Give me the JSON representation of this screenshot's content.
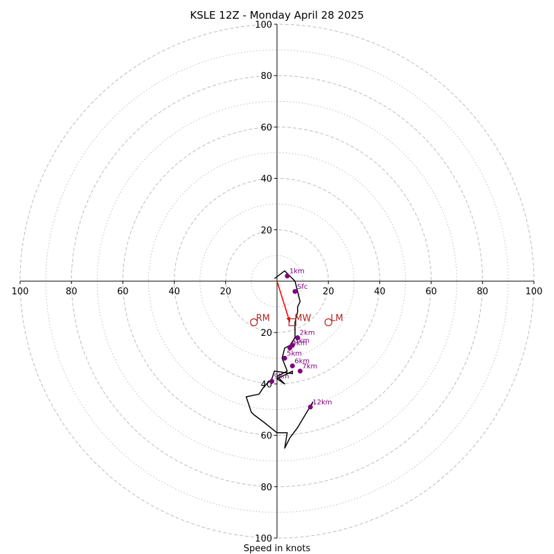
{
  "chart_data": {
    "type": "hodograph",
    "title": "KSLE 12Z - Monday April 28 2025",
    "xlabel": "Speed in knots",
    "ylabel": "",
    "xlim": [
      -100,
      100
    ],
    "ylim": [
      -100,
      100
    ],
    "units": "knots",
    "rings_major": [
      20,
      40,
      60,
      80,
      100
    ],
    "rings_minor": [
      10,
      30,
      50,
      70,
      90
    ],
    "x_tick_labels": [
      "100",
      "80",
      "60",
      "40",
      "20",
      "20",
      "40",
      "60",
      "80",
      "100"
    ],
    "x_tick_values": [
      -100,
      -80,
      -60,
      -40,
      -20,
      20,
      40,
      60,
      80,
      100
    ],
    "y_tick_labels": [
      "100",
      "80",
      "60",
      "40",
      "20",
      "20",
      "40",
      "60",
      "80",
      "100"
    ],
    "y_tick_values": [
      100,
      80,
      60,
      40,
      20,
      -20,
      -40,
      -60,
      -80,
      -100
    ],
    "grid": true,
    "colors": {
      "hodograph": "#000000",
      "height_markers": "#800080",
      "motion": "#b22222",
      "shear_vector": "#ff0000",
      "grid": "#bbbbbb"
    },
    "hodograph": {
      "u": [
        -1,
        3,
        5,
        7,
        8,
        9,
        8,
        8,
        7,
        7,
        5,
        3,
        2,
        4,
        0,
        3,
        0,
        6,
        6,
        -1,
        -2,
        -5,
        -7,
        -12,
        -10,
        -9,
        -5,
        0,
        4,
        3,
        5,
        8,
        14,
        13
      ],
      "v": [
        1,
        4,
        2,
        0,
        -4,
        -8,
        -10,
        -12,
        -16,
        -22,
        -25,
        -26,
        -30,
        -35,
        -37,
        -40,
        -38,
        -35,
        -36,
        -35,
        -38,
        -41,
        -44,
        -45,
        -51,
        -52,
        -55,
        -59,
        -59,
        -65,
        -61,
        -57,
        -47,
        -49
      ]
    },
    "height_markers": [
      {
        "label": "Sfc",
        "u": 7,
        "v": -4
      },
      {
        "label": "1km",
        "u": 4,
        "v": 2
      },
      {
        "label": "2km",
        "u": 8,
        "v": -22
      },
      {
        "label": "3km",
        "u": 6,
        "v": -25
      },
      {
        "label": "4km",
        "u": 5,
        "v": -26
      },
      {
        "label": "5km",
        "u": 3,
        "v": -30
      },
      {
        "label": "6km",
        "u": 6,
        "v": -33
      },
      {
        "label": "7km",
        "u": 9,
        "v": -35
      },
      {
        "label": "9km",
        "u": -2,
        "v": -39
      },
      {
        "label": "12km",
        "u": 13,
        "v": -49
      }
    ],
    "storm_motion": [
      {
        "label": "RM",
        "u": -9,
        "v": -16,
        "marker": "circle"
      },
      {
        "label": "MW",
        "u": 6,
        "v": -16,
        "marker": "square"
      },
      {
        "label": "LM",
        "u": 20,
        "v": -16,
        "marker": "circle"
      }
    ],
    "shear_vector": {
      "u0": 0,
      "v0": 0,
      "u1": 5,
      "v1": -16
    }
  }
}
